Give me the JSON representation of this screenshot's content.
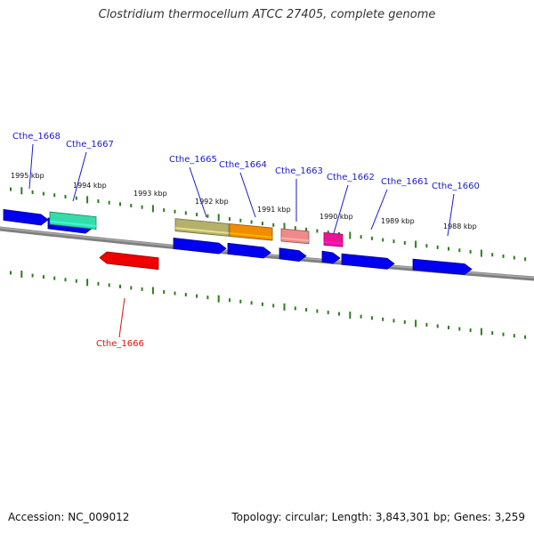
{
  "title": "Clostridium thermocellum ATCC 27405, complete genome",
  "footer": {
    "accession": "Accession: NC_009012",
    "summary": "Topology: circular; Length: 3,843,301 bp; Genes: 3,259"
  },
  "colors": {
    "backbone": "#7f7f7f",
    "tick": "#2e7d1e",
    "cds": "#0000ee",
    "label_forward": "#1a1acc",
    "label_reverse": "#dd1111"
  },
  "kbp_ticks": [
    {
      "label": "1995 kbp"
    },
    {
      "label": "1994 kbp"
    },
    {
      "label": "1993 kbp"
    },
    {
      "label": "1992 kbp"
    },
    {
      "label": "1991 kbp"
    },
    {
      "label": "1990 kbp"
    },
    {
      "label": "1989 kbp"
    },
    {
      "label": "1988 kbp"
    }
  ],
  "genes": [
    {
      "name": "Cthe_1668",
      "strand": "forward",
      "color": "#0000ee"
    },
    {
      "name": "Cthe_1667",
      "strand": "forward",
      "color": "#33ddaa"
    },
    {
      "name": "Cthe_1666",
      "strand": "reverse",
      "color": "#ee0000"
    },
    {
      "name": "Cthe_1665",
      "strand": "forward",
      "color": "#b5b06a"
    },
    {
      "name": "Cthe_1664",
      "strand": "forward",
      "color": "#f08c00"
    },
    {
      "name": "Cthe_1663",
      "strand": "forward",
      "color": "#f08a8a"
    },
    {
      "name": "Cthe_1662",
      "strand": "forward",
      "color": "#ee1199"
    },
    {
      "name": "Cthe_1661",
      "strand": "forward",
      "color": "#0000ee"
    },
    {
      "name": "Cthe_1660",
      "strand": "forward",
      "color": "#0000ee"
    }
  ]
}
